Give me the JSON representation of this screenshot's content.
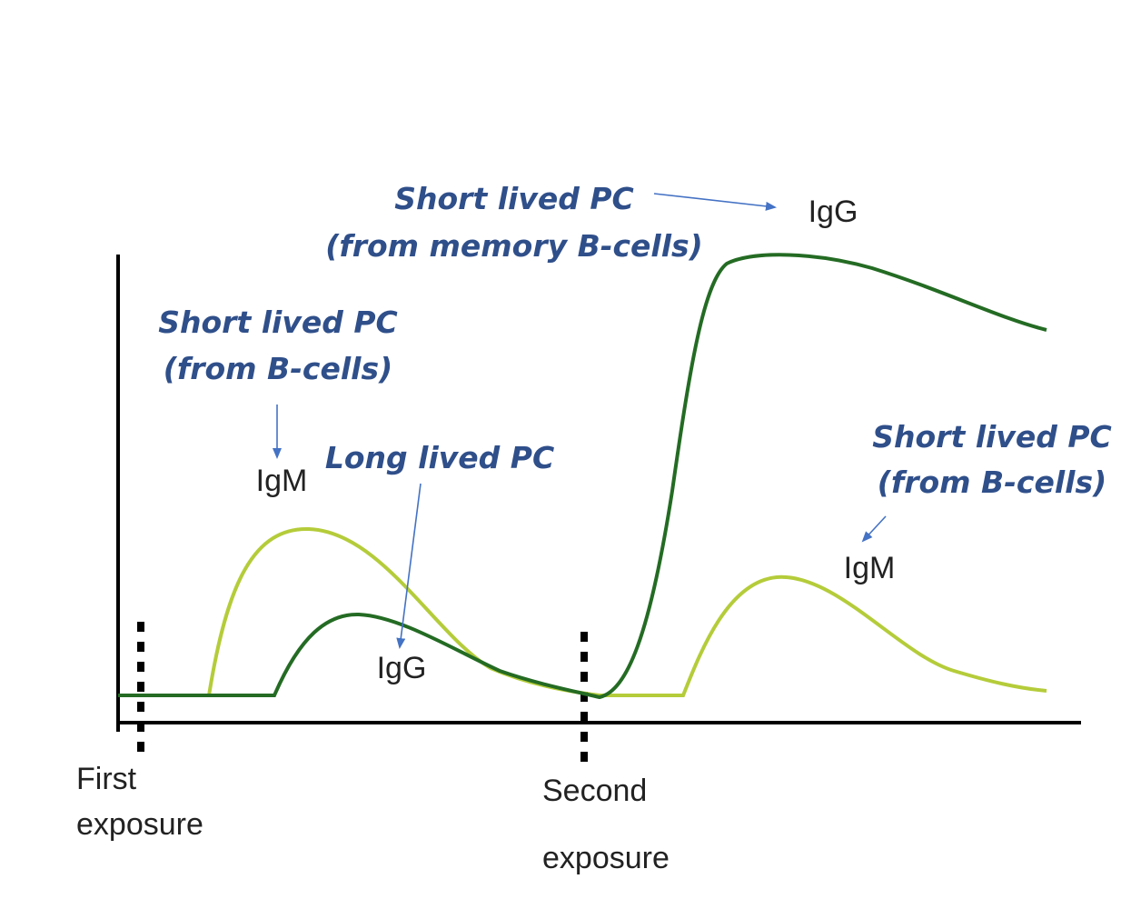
{
  "colors": {
    "igm": "#b5cc3a",
    "igg": "#246b24",
    "annotation": "#2f4f8a",
    "arrow": "#4472c4"
  },
  "exposures": {
    "first_line1": "First",
    "first_line2": "exposure",
    "second_line1": "Second",
    "second_line2": "exposure"
  },
  "curve_labels": {
    "primary_igm": "IgM",
    "primary_igg": "IgG",
    "secondary_igg": "IgG",
    "secondary_igm": "IgM"
  },
  "annotations": {
    "primary_short_line1": "Short lived PC",
    "primary_short_line2": "(from B-cells)",
    "long_lived": "Long lived PC",
    "memory_short_line1": "Short lived PC",
    "memory_short_line2": "(from memory B-cells)",
    "secondary_short_line1": "Short lived PC",
    "secondary_short_line2": "(from B-cells)"
  }
}
